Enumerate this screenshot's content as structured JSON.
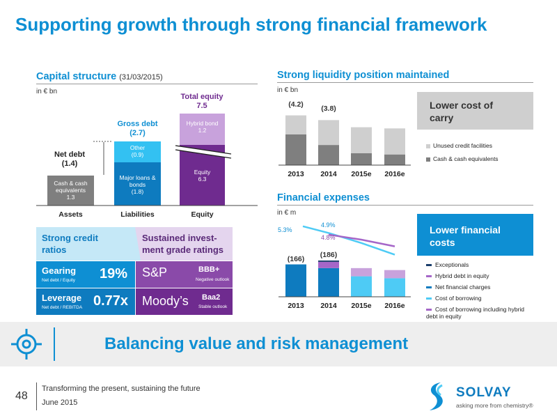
{
  "slide_title": "Supporting growth through strong financial framework",
  "capital": {
    "title": "Capital structure",
    "date": "(31/03/2015)",
    "unit": "in € bn",
    "total_equity_label": "Total equity",
    "total_equity_value": "7.5",
    "gross_debt_label": "Gross debt",
    "gross_debt_value": "(2.7)",
    "net_debt_label": "Net debt",
    "net_debt_value": "(1.4)",
    "cash_label": "Cash & cash equivalents",
    "cash_value": "1.3",
    "other_label": "Other",
    "other_value": "(0.9)",
    "major_label": "Major loans & bonds",
    "major_value": "(1.8)",
    "hybrid_label": "Hybrid bond",
    "hybrid_value": "1.2",
    "equity_label": "Equity",
    "equity_value": "6.3",
    "categories": [
      "Assets",
      "Liabilities",
      "Equity"
    ]
  },
  "ratings": {
    "left_header": "Strong credit ratios",
    "right_header": "Sustained invest-ment grade ratings",
    "gearing_label": "Gearing",
    "gearing_sub": "Net debt / Equity",
    "gearing_value": "19%",
    "leverage_label": "Leverage",
    "leverage_sub": "Net debt / REBITDA",
    "leverage_value": "0.77x",
    "sp_name": "S&P",
    "sp_rating": "BBB+",
    "sp_outlook": "Negative outlook",
    "moodys_name": "Moody’s",
    "moodys_rating": "Baa2",
    "moodys_outlook": "Stable outlook"
  },
  "liquidity": {
    "title": "Strong liquidity position maintained",
    "unit": "in € bn",
    "box_text": "Lower cost of carry",
    "labels": [
      "(4.2)",
      "(3.8)"
    ],
    "legend": [
      "Unused credit facilities",
      "Cash & cash equivalents"
    ]
  },
  "expenses": {
    "title": "Financial expenses",
    "unit": "in € m",
    "box_text": "Lower financial costs",
    "labels": [
      "(166)",
      "(186)"
    ],
    "line_labels": [
      "5.3%",
      "4.9%",
      "4.8%"
    ],
    "legend": [
      "Exceptionals",
      "Hybrid debt in equity",
      "Net financial charges",
      "Cost of borrowing",
      "Cost of borrowing including hybrid debt in equity"
    ]
  },
  "banner": {
    "text": "Balancing value and risk management"
  },
  "footer": {
    "page_number": "48",
    "tagline": "Transforming the present, sustaining the future",
    "date": "June 2015",
    "logo_text": "SOLVAY",
    "logo_tagline": "asking more from chemistry®"
  },
  "chart_data": [
    {
      "type": "bar",
      "title": "Strong liquidity position maintained",
      "categories": [
        "2013",
        "2014",
        "2015e",
        "2016e"
      ],
      "series": [
        {
          "name": "Cash & cash equivalents",
          "values": [
            2.6,
            1.7,
            1.0,
            0.9
          ]
        },
        {
          "name": "Unused credit facilities",
          "values": [
            1.6,
            2.1,
            2.2,
            2.2
          ]
        }
      ],
      "annotations": [
        "(4.2)",
        "(3.8)"
      ]
    },
    {
      "type": "bar",
      "title": "Financial expenses",
      "categories": [
        "2013",
        "2014",
        "2015e",
        "2016e"
      ],
      "series": [
        {
          "name": "Net financial charges",
          "values": [
            166,
            147,
            105,
            95
          ]
        },
        {
          "name": "Hybrid debt in equity",
          "values": [
            0,
            32,
            42,
            42
          ]
        },
        {
          "name": "Exceptionals",
          "values": [
            0,
            7,
            0,
            0
          ]
        },
        {
          "name": "Cost of borrowing",
          "values": [
            5.3,
            4.9,
            4.3,
            3.6
          ]
        },
        {
          "name": "Cost of borrowing including hybrid debt in equity",
          "values": [
            null,
            4.8,
            4.5,
            4.1
          ]
        }
      ],
      "annotations": [
        "(166)",
        "(186)",
        "5.3%",
        "4.9%",
        "4.8%"
      ]
    }
  ]
}
